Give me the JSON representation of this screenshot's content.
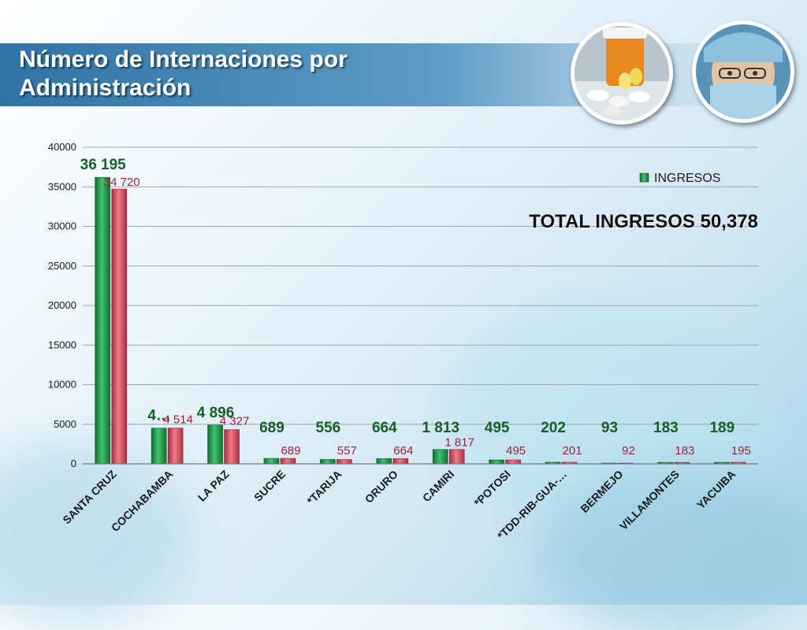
{
  "slide": {
    "title": "Número de Internaciones por Administración",
    "total_label": "TOTAL INGRESOS  50,378"
  },
  "images": {
    "left_photo": "pills-photo",
    "right_photo": "surgeon-photo"
  },
  "colors": {
    "ingresos": "#1f9e4a",
    "egresos": "#d9495b",
    "ingresos_label": "#1a5e2a",
    "egresos_label": "#a0223a",
    "title_band": "#2e74a6"
  },
  "chart_data": {
    "type": "bar",
    "title": "",
    "xlabel": "",
    "ylabel": "",
    "ylim": [
      0,
      40000
    ],
    "yticks": [
      0,
      5000,
      10000,
      15000,
      20000,
      25000,
      30000,
      35000,
      40000
    ],
    "grid": true,
    "legend_position": "top-right",
    "legend_entries": [
      "INGRESOS"
    ],
    "categories": [
      "SANTA CRUZ",
      "COCHABAMBA",
      "LA PAZ",
      "SUCRE",
      "*TARIJA",
      "ORURO",
      "CAMIRI",
      "*POTOSI",
      "*TDD-RIB-GUA-…",
      "BERMEJO",
      "VILLAMONTES",
      "YACUIBA"
    ],
    "series": [
      {
        "name": "INGRESOS",
        "values": [
          36195,
          4514,
          4896,
          689,
          556,
          664,
          1813,
          495,
          202,
          93,
          183,
          189
        ],
        "labels": [
          "36 195",
          "4…",
          "4 896",
          "689",
          "556",
          "664",
          "1 813",
          "495",
          "202",
          "93",
          "183",
          "189"
        ]
      },
      {
        "values": [
          34720,
          4514,
          4327,
          689,
          557,
          664,
          1817,
          495,
          201,
          92,
          183,
          195
        ],
        "labels": [
          "34 720",
          "4 514",
          "4 327",
          "689",
          "557",
          "664",
          "1 817",
          "495",
          "201",
          "92",
          "183",
          "195"
        ]
      }
    ]
  }
}
